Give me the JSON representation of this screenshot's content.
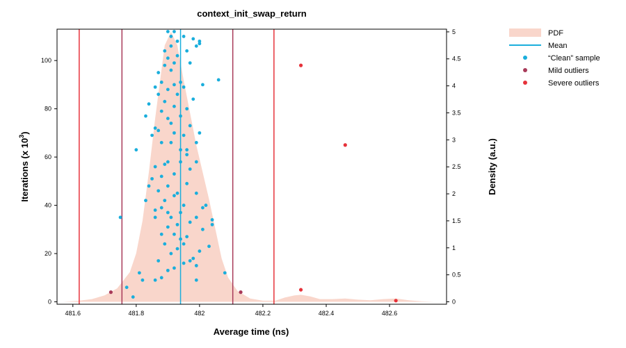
{
  "chart_data": {
    "type": "scatter",
    "title": "context_init_swap_return",
    "xlabel": "Average time (ns)",
    "ylabel": "Iterations (x 10",
    "ylabel_superscript": "3",
    "ylabel_suffix": ")",
    "y2label": "Density (a.u.)",
    "xlim": [
      481.55,
      482.78
    ],
    "ylim": [
      -1,
      113
    ],
    "y2lim": [
      -0.045,
      5.05
    ],
    "x_ticks": [
      481.6,
      481.8,
      482,
      482.2,
      482.4,
      482.6
    ],
    "x_tick_labels": [
      "481.6",
      "481.8",
      "482",
      "482.2",
      "482.4",
      "482.6"
    ],
    "y_ticks": [
      0,
      20,
      40,
      60,
      80,
      100
    ],
    "y_tick_labels": [
      "0",
      "20",
      "40",
      "60",
      "80",
      "100"
    ],
    "y2_ticks": [
      0,
      0.5,
      1,
      1.5,
      2,
      2.5,
      3,
      3.5,
      4,
      4.5,
      5
    ],
    "y2_tick_labels": [
      "0",
      "0.5",
      "1",
      "1.5",
      "2",
      "2.5",
      "3",
      "3.5",
      "4",
      "4.5",
      "5"
    ],
    "grid": false,
    "legend_position": "outside-right",
    "legend": [
      {
        "label": "PDF",
        "kind": "area",
        "color": "#f9d6cb"
      },
      {
        "label": "Mean",
        "kind": "line",
        "color": "#1aaedc"
      },
      {
        "label": "“Clean” sample",
        "kind": "point",
        "color": "#1aaedc"
      },
      {
        "label": "Mild outliers",
        "kind": "point",
        "color": "#a83a59"
      },
      {
        "label": "Severe outliers",
        "kind": "point",
        "color": "#e6323a"
      }
    ],
    "colors": {
      "pdf": "#f9d6cb",
      "mean": "#1aaedc",
      "clean": "#1aaedc",
      "mild": "#a83a59",
      "severe": "#e6323a"
    },
    "mean": 481.94,
    "mild_outlier_bounds": [
      481.755,
      482.105
    ],
    "severe_outlier_bounds": [
      481.62,
      482.235
    ],
    "pdf": [
      [
        481.57,
        0
      ],
      [
        481.62,
        0.02
      ],
      [
        481.66,
        0.05
      ],
      [
        481.7,
        0.12
      ],
      [
        481.74,
        0.25
      ],
      [
        481.78,
        0.55
      ],
      [
        481.8,
        0.9
      ],
      [
        481.82,
        1.5
      ],
      [
        481.84,
        2.4
      ],
      [
        481.86,
        3.4
      ],
      [
        481.88,
        4.3
      ],
      [
        481.89,
        4.75
      ],
      [
        481.91,
        5.0
      ],
      [
        481.93,
        4.75
      ],
      [
        481.95,
        4.1
      ],
      [
        481.97,
        3.5
      ],
      [
        481.99,
        2.9
      ],
      [
        482.01,
        2.4
      ],
      [
        482.03,
        1.9
      ],
      [
        482.05,
        1.35
      ],
      [
        482.07,
        0.8
      ],
      [
        482.09,
        0.45
      ],
      [
        482.12,
        0.2
      ],
      [
        482.16,
        0.06
      ],
      [
        482.2,
        0.02
      ],
      [
        482.24,
        0.02
      ],
      [
        482.27,
        0.08
      ],
      [
        482.3,
        0.12
      ],
      [
        482.32,
        0.13
      ],
      [
        482.35,
        0.1
      ],
      [
        482.38,
        0.05
      ],
      [
        482.42,
        0.05
      ],
      [
        482.46,
        0.06
      ],
      [
        482.5,
        0.04
      ],
      [
        482.54,
        0.03
      ],
      [
        482.58,
        0.05
      ],
      [
        482.62,
        0.06
      ],
      [
        482.66,
        0.03
      ],
      [
        482.7,
        0.01
      ],
      [
        482.74,
        0
      ]
    ],
    "clean_points": [
      [
        481.79,
        2
      ],
      [
        481.77,
        6
      ],
      [
        481.82,
        9
      ],
      [
        481.81,
        12
      ],
      [
        481.86,
        9
      ],
      [
        481.88,
        10
      ],
      [
        481.99,
        9
      ],
      [
        482.08,
        12
      ],
      [
        481.9,
        13
      ],
      [
        481.92,
        14
      ],
      [
        481.87,
        17
      ],
      [
        481.95,
        16
      ],
      [
        481.98,
        18
      ],
      [
        481.97,
        17
      ],
      [
        481.99,
        15
      ],
      [
        481.91,
        20
      ],
      [
        481.93,
        22
      ],
      [
        482.0,
        21
      ],
      [
        481.95,
        24
      ],
      [
        482.03,
        23
      ],
      [
        481.89,
        24
      ],
      [
        481.94,
        26
      ],
      [
        481.88,
        28
      ],
      [
        481.92,
        28
      ],
      [
        481.96,
        27
      ],
      [
        482.01,
        30
      ],
      [
        481.9,
        31
      ],
      [
        481.93,
        32
      ],
      [
        481.97,
        33
      ],
      [
        482.04,
        32
      ],
      [
        481.75,
        35
      ],
      [
        481.86,
        35
      ],
      [
        481.91,
        35
      ],
      [
        481.99,
        35
      ],
      [
        482.04,
        34
      ],
      [
        481.9,
        37
      ],
      [
        481.94,
        37
      ],
      [
        482.01,
        39
      ],
      [
        481.86,
        38
      ],
      [
        481.88,
        39
      ],
      [
        481.95,
        40
      ],
      [
        482.02,
        40
      ],
      [
        481.83,
        42
      ],
      [
        481.89,
        42
      ],
      [
        481.92,
        44
      ],
      [
        481.87,
        46
      ],
      [
        481.93,
        45
      ],
      [
        481.99,
        45
      ],
      [
        481.84,
        48
      ],
      [
        481.9,
        48
      ],
      [
        481.96,
        49
      ],
      [
        481.85,
        51
      ],
      [
        481.88,
        52
      ],
      [
        481.92,
        53
      ],
      [
        481.97,
        55
      ],
      [
        481.86,
        56
      ],
      [
        481.89,
        57
      ],
      [
        481.94,
        58
      ],
      [
        481.9,
        58
      ],
      [
        481.99,
        58
      ],
      [
        481.96,
        61
      ],
      [
        481.8,
        63
      ],
      [
        481.94,
        63
      ],
      [
        481.96,
        63
      ],
      [
        481.88,
        66
      ],
      [
        481.91,
        66
      ],
      [
        481.99,
        66
      ],
      [
        481.85,
        69
      ],
      [
        481.87,
        71
      ],
      [
        481.92,
        70
      ],
      [
        481.95,
        69
      ],
      [
        482.0,
        70
      ],
      [
        481.86,
        72
      ],
      [
        481.91,
        74
      ],
      [
        481.97,
        73
      ],
      [
        481.83,
        77
      ],
      [
        481.9,
        76
      ],
      [
        481.94,
        77
      ],
      [
        481.88,
        79
      ],
      [
        481.92,
        81
      ],
      [
        481.96,
        80
      ],
      [
        481.84,
        82
      ],
      [
        481.89,
        83
      ],
      [
        481.98,
        84
      ],
      [
        481.87,
        86
      ],
      [
        481.93,
        86
      ],
      [
        481.9,
        88
      ],
      [
        481.86,
        89
      ],
      [
        481.92,
        90
      ],
      [
        481.95,
        89
      ],
      [
        482.01,
        90
      ],
      [
        481.88,
        91
      ],
      [
        481.94,
        91
      ],
      [
        482.06,
        92
      ],
      [
        481.87,
        95
      ],
      [
        481.91,
        96
      ],
      [
        481.89,
        98
      ],
      [
        481.92,
        99
      ],
      [
        481.97,
        99
      ],
      [
        481.9,
        101
      ],
      [
        481.93,
        102
      ],
      [
        481.96,
        104
      ],
      [
        481.89,
        104
      ],
      [
        481.91,
        106
      ],
      [
        481.99,
        106
      ],
      [
        482.0,
        107
      ],
      [
        481.93,
        108
      ],
      [
        481.98,
        109
      ],
      [
        481.95,
        110
      ],
      [
        481.91,
        110
      ],
      [
        482.0,
        108
      ],
      [
        481.92,
        112
      ],
      [
        481.9,
        112
      ]
    ],
    "mild_points": [
      [
        481.72,
        4
      ],
      [
        482.13,
        4
      ]
    ],
    "severe_points": [
      [
        482.32,
        98
      ],
      [
        482.46,
        65
      ],
      [
        482.32,
        5
      ],
      [
        482.62,
        0.5
      ]
    ]
  }
}
